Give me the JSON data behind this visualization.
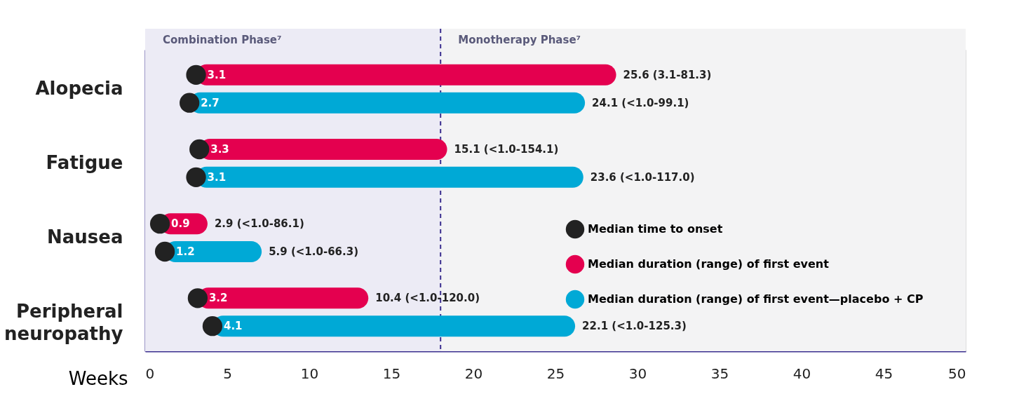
{
  "chart_data": {
    "type": "bar",
    "orientation": "horizontal",
    "categories": [
      "Alopecia",
      "Fatigue",
      "Nausea",
      "Peripheral neuropathy"
    ],
    "xlabel": "Weeks",
    "xlim": [
      0,
      50
    ],
    "xticks": [
      0,
      5,
      10,
      15,
      20,
      25,
      30,
      35,
      40,
      45,
      50
    ],
    "grid": false,
    "legend": "bottom right",
    "marker": "circle",
    "series": [
      {
        "type": "scatter",
        "name": "Median time to onset",
        "color": "#222222",
        "values": [
          3.1,
          3.3,
          0.9,
          3.2
        ],
        "value_labels": [
          "3.1",
          "3.3",
          "0.9",
          "3.2"
        ]
      },
      {
        "type": "scatter",
        "color": "#222222",
        "values": [
          2.7,
          3.1,
          1.2,
          4.1
        ],
        "value_labels": [
          "2.7",
          "3.1",
          "1.2",
          "4.1"
        ]
      },
      {
        "name": "Median duration (range) of first event",
        "color": "#e4004f",
        "values": [
          25.6,
          15.1,
          2.9,
          10.4
        ],
        "base": [
          3.1,
          3.3,
          0.9,
          3.2
        ],
        "value_labels": [
          "25.6 (3.1-81.3)",
          "15.1 (<1.0-154.1)",
          "2.9 (<1.0-86.1)",
          "10.4 (<1.0-120.0)"
        ]
      },
      {
        "name": "Median duration (range) of first event—placebo + CP",
        "color": "#00a9d6",
        "values": [
          24.1,
          23.6,
          5.9,
          22.1
        ],
        "base": [
          2.7,
          3.1,
          1.2,
          4.1
        ],
        "value_labels": [
          "24.1 (<1.0-99.1)",
          "23.6 (<1.0-117.0)",
          "5.9 (<1.0-66.3)",
          "22.1 (<1.0-125.3)"
        ]
      }
    ],
    "ref_lines": [
      {
        "axis": "x",
        "value": 18,
        "color": "#3b2f8f",
        "line_style": "dashed"
      }
    ],
    "bands": [
      {
        "axis": "x",
        "from": 0,
        "to": 18,
        "label": "Combination Phase⁷",
        "color": "#ecebf5"
      },
      {
        "axis": "x",
        "from": 18,
        "to": 50,
        "label": "Monotherapy Phase⁷",
        "color": "#f3f3f4"
      }
    ]
  }
}
